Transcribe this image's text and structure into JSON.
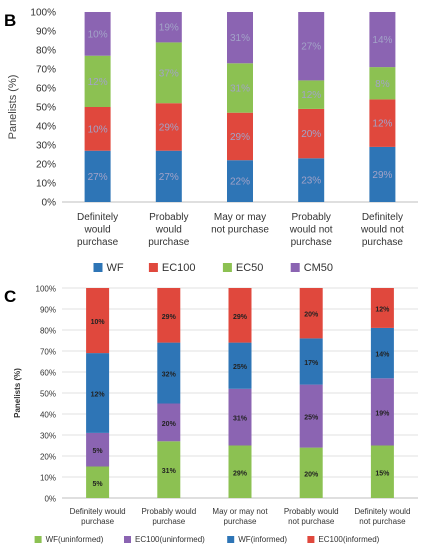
{
  "chart_data": [
    {
      "panel": "B",
      "type": "bar",
      "stacked": true,
      "categories": [
        [
          "Definitely",
          "would",
          "purchase"
        ],
        [
          "Probably",
          "would",
          "purchase"
        ],
        [
          "May or may",
          "not purchase"
        ],
        [
          "Probably",
          "would not",
          "purchase"
        ],
        [
          "Definitely",
          "would not",
          "purchase"
        ]
      ],
      "series": [
        {
          "name": "WF",
          "color": "#2e75b6",
          "values": [
            27,
            27,
            22,
            23,
            29
          ],
          "labels": [
            "27%",
            "27%",
            "22%",
            "23%",
            "29%"
          ]
        },
        {
          "name": "EC100",
          "color": "#e0483d",
          "values": [
            23,
            25,
            25,
            26,
            25
          ],
          "labels": [
            "10%",
            "29%",
            "29%",
            "20%",
            "12%"
          ]
        },
        {
          "name": "EC50",
          "color": "#8cc152",
          "values": [
            27,
            32,
            26,
            15,
            17
          ],
          "labels": [
            "12%",
            "37%",
            "31%",
            "12%",
            "8%"
          ]
        },
        {
          "name": "CM50",
          "color": "#8b64b2",
          "values": [
            23,
            16,
            27,
            36,
            29
          ],
          "labels": [
            "10%",
            "19%",
            "31%",
            "27%",
            "14%"
          ]
        }
      ],
      "ylabel": "Panelists (%)",
      "yticks": [
        "0%",
        "10%",
        "20%",
        "30%",
        "40%",
        "50%",
        "60%",
        "70%",
        "80%",
        "90%",
        "100%"
      ],
      "ylim": [
        0,
        100
      ],
      "legend": "bottom"
    },
    {
      "panel": "C",
      "type": "bar",
      "stacked": true,
      "categories": [
        [
          "Definitely would",
          "purchase"
        ],
        [
          "Probably would",
          "purchase"
        ],
        [
          "May or may not",
          "purchase"
        ],
        [
          "Probably would",
          "not purchase"
        ],
        [
          "Definitely would",
          "not purchase"
        ]
      ],
      "series": [
        {
          "name": "WF(uninformed)",
          "color": "#8cc152",
          "values": [
            15,
            27,
            25,
            24,
            25
          ],
          "labels": [
            "5%",
            "31%",
            "29%",
            "20%",
            "15%"
          ]
        },
        {
          "name": "EC100(uninformed)",
          "color": "#8b64b2",
          "values": [
            16,
            18,
            27,
            30,
            32
          ],
          "labels": [
            "5%",
            "20%",
            "31%",
            "25%",
            "19%"
          ]
        },
        {
          "name": "WF(informed)",
          "color": "#2e75b6",
          "values": [
            38,
            29,
            22,
            22,
            24
          ],
          "labels": [
            "12%",
            "32%",
            "25%",
            "17%",
            "14%"
          ]
        },
        {
          "name": "EC100(informed)",
          "color": "#e0483d",
          "values": [
            31,
            26,
            26,
            24,
            19
          ],
          "labels": [
            "10%",
            "29%",
            "29%",
            "20%",
            "12%"
          ]
        }
      ],
      "ylabel": "Panelists (%)",
      "yticks": [
        "0%",
        "10%",
        "20%",
        "30%",
        "40%",
        "50%",
        "60%",
        "70%",
        "80%",
        "90%",
        "100%"
      ],
      "ylim": [
        0,
        100
      ],
      "legend": "bottom"
    }
  ]
}
